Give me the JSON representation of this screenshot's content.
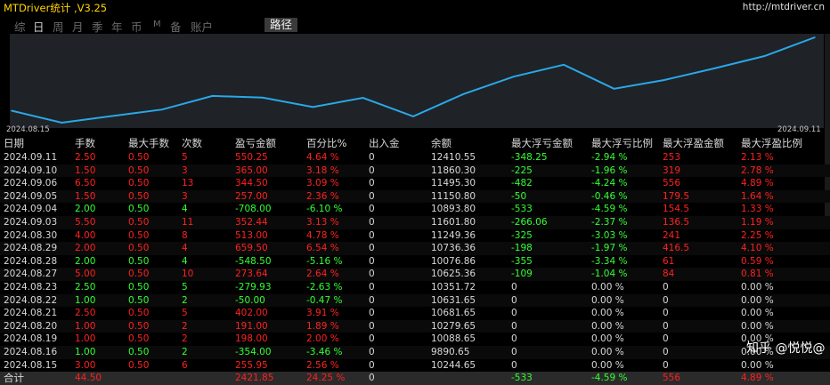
{
  "window": {
    "title": "MTDriver统计 ,V3.25",
    "url": "http://mtdriver.cn"
  },
  "tabs": [
    {
      "label": "综",
      "active": false
    },
    {
      "label": "日",
      "active": true
    },
    {
      "label": "周",
      "active": false
    },
    {
      "label": "月",
      "active": false
    },
    {
      "label": "季",
      "active": false
    },
    {
      "label": "年",
      "active": false
    },
    {
      "label": "币",
      "active": false
    },
    {
      "label": "M",
      "active": false
    },
    {
      "label": "备",
      "active": false
    },
    {
      "label": "账户",
      "active": false
    },
    {
      "label": "路径",
      "active": true
    }
  ],
  "chart_data": {
    "type": "line",
    "x_start_label": "2024.08.15",
    "x_end_label": "2024.09.11",
    "color": "#29a8e8",
    "x": [
      "2024.08.15",
      "2024.08.16",
      "2024.08.19",
      "2024.08.20",
      "2024.08.21",
      "2024.08.22",
      "2024.08.23",
      "2024.08.27",
      "2024.08.28",
      "2024.08.29",
      "2024.08.30",
      "2024.09.03",
      "2024.09.04",
      "2024.09.05",
      "2024.09.06",
      "2024.09.10",
      "2024.09.11"
    ],
    "values": [
      10244.65,
      9890.65,
      10088.65,
      10279.65,
      10681.65,
      10631.65,
      10351.72,
      10625.36,
      10076.86,
      10736.36,
      11249.36,
      11601.8,
      10893.8,
      11150.8,
      11495.3,
      11860.3,
      12410.55
    ]
  },
  "table": {
    "headers": [
      "日期",
      "手数",
      "最大手数",
      "次数",
      "盈亏金额",
      "百分比%",
      "出入金",
      "余额",
      "最大浮亏金额",
      "最大浮亏比例",
      "最大浮盈金额",
      "最大浮盈比例"
    ],
    "rows": [
      {
        "date": "2024.09.11",
        "lots": "2.50",
        "max_lots": "0.50",
        "count": "5",
        "pnl": "550.25",
        "pct": "4.64 %",
        "flow": "0",
        "balance": "12410.55",
        "max_loss": "-348.25",
        "max_loss_pct": "-2.94 %",
        "max_gain": "253",
        "max_gain_pct": "2.13 %",
        "tone": "r",
        "ltone": "g",
        "gtone": "r"
      },
      {
        "date": "2024.09.10",
        "lots": "1.50",
        "max_lots": "0.50",
        "count": "3",
        "pnl": "365.00",
        "pct": "3.18 %",
        "flow": "0",
        "balance": "11860.30",
        "max_loss": "-225",
        "max_loss_pct": "-1.96 %",
        "max_gain": "319",
        "max_gain_pct": "2.78 %",
        "tone": "r",
        "ltone": "g",
        "gtone": "r"
      },
      {
        "date": "2024.09.06",
        "lots": "6.50",
        "max_lots": "0.50",
        "count": "13",
        "pnl": "344.50",
        "pct": "3.09 %",
        "flow": "0",
        "balance": "11495.30",
        "max_loss": "-482",
        "max_loss_pct": "-4.24 %",
        "max_gain": "556",
        "max_gain_pct": "4.89 %",
        "tone": "r",
        "ltone": "g",
        "gtone": "r"
      },
      {
        "date": "2024.09.05",
        "lots": "1.50",
        "max_lots": "0.50",
        "count": "3",
        "pnl": "257.00",
        "pct": "2.36 %",
        "flow": "0",
        "balance": "11150.80",
        "max_loss": "-50",
        "max_loss_pct": "-0.46 %",
        "max_gain": "179.5",
        "max_gain_pct": "1.64 %",
        "tone": "r",
        "ltone": "g",
        "gtone": "r"
      },
      {
        "date": "2024.09.04",
        "lots": "2.00",
        "max_lots": "0.50",
        "count": "4",
        "pnl": "-708.00",
        "pct": "-6.10 %",
        "flow": "0",
        "balance": "10893.80",
        "max_loss": "-533",
        "max_loss_pct": "-4.59 %",
        "max_gain": "154.5",
        "max_gain_pct": "1.33 %",
        "tone": "g",
        "ltone": "g",
        "gtone": "r"
      },
      {
        "date": "2024.09.03",
        "lots": "5.50",
        "max_lots": "0.50",
        "count": "11",
        "pnl": "352.44",
        "pct": "3.13 %",
        "flow": "0",
        "balance": "11601.80",
        "max_loss": "-266.06",
        "max_loss_pct": "-2.37 %",
        "max_gain": "136.5",
        "max_gain_pct": "1.19 %",
        "tone": "r",
        "ltone": "g",
        "gtone": "r"
      },
      {
        "date": "2024.08.30",
        "lots": "4.00",
        "max_lots": "0.50",
        "count": "8",
        "pnl": "513.00",
        "pct": "4.78 %",
        "flow": "0",
        "balance": "11249.36",
        "max_loss": "-325",
        "max_loss_pct": "-3.03 %",
        "max_gain": "241",
        "max_gain_pct": "2.25 %",
        "tone": "r",
        "ltone": "g",
        "gtone": "r"
      },
      {
        "date": "2024.08.29",
        "lots": "2.00",
        "max_lots": "0.50",
        "count": "4",
        "pnl": "659.50",
        "pct": "6.54 %",
        "flow": "0",
        "balance": "10736.36",
        "max_loss": "-198",
        "max_loss_pct": "-1.97 %",
        "max_gain": "416.5",
        "max_gain_pct": "4.10 %",
        "tone": "r",
        "ltone": "g",
        "gtone": "r"
      },
      {
        "date": "2024.08.28",
        "lots": "2.00",
        "max_lots": "0.50",
        "count": "4",
        "pnl": "-548.50",
        "pct": "-5.16 %",
        "flow": "0",
        "balance": "10076.86",
        "max_loss": "-355",
        "max_loss_pct": "-3.34 %",
        "max_gain": "61",
        "max_gain_pct": "0.59 %",
        "tone": "g",
        "ltone": "g",
        "gtone": "r"
      },
      {
        "date": "2024.08.27",
        "lots": "5.00",
        "max_lots": "0.50",
        "count": "10",
        "pnl": "273.64",
        "pct": "2.64 %",
        "flow": "0",
        "balance": "10625.36",
        "max_loss": "-109",
        "max_loss_pct": "-1.04 %",
        "max_gain": "84",
        "max_gain_pct": "0.81 %",
        "tone": "r",
        "ltone": "g",
        "gtone": "r"
      },
      {
        "date": "2024.08.23",
        "lots": "2.50",
        "max_lots": "0.50",
        "count": "5",
        "pnl": "-279.93",
        "pct": "-2.63 %",
        "flow": "0",
        "balance": "10351.72",
        "max_loss": "0",
        "max_loss_pct": "0.00 %",
        "max_gain": "0",
        "max_gain_pct": "0.00 %",
        "tone": "g",
        "ltone": "w",
        "gtone": "w"
      },
      {
        "date": "2024.08.22",
        "lots": "1.00",
        "max_lots": "0.50",
        "count": "2",
        "pnl": "-50.00",
        "pct": "-0.47 %",
        "flow": "0",
        "balance": "10631.65",
        "max_loss": "0",
        "max_loss_pct": "0.00 %",
        "max_gain": "0",
        "max_gain_pct": "0.00 %",
        "tone": "g",
        "ltone": "w",
        "gtone": "w"
      },
      {
        "date": "2024.08.21",
        "lots": "2.50",
        "max_lots": "0.50",
        "count": "5",
        "pnl": "402.00",
        "pct": "3.91 %",
        "flow": "0",
        "balance": "10681.65",
        "max_loss": "0",
        "max_loss_pct": "0.00 %",
        "max_gain": "0",
        "max_gain_pct": "0.00 %",
        "tone": "r",
        "ltone": "w",
        "gtone": "w"
      },
      {
        "date": "2024.08.20",
        "lots": "1.00",
        "max_lots": "0.50",
        "count": "2",
        "pnl": "191.00",
        "pct": "1.89 %",
        "flow": "0",
        "balance": "10279.65",
        "max_loss": "0",
        "max_loss_pct": "0.00 %",
        "max_gain": "0",
        "max_gain_pct": "0.00 %",
        "tone": "r",
        "ltone": "w",
        "gtone": "w"
      },
      {
        "date": "2024.08.19",
        "lots": "1.00",
        "max_lots": "0.50",
        "count": "2",
        "pnl": "198.00",
        "pct": "2.00 %",
        "flow": "0",
        "balance": "10088.65",
        "max_loss": "0",
        "max_loss_pct": "0.00 %",
        "max_gain": "0",
        "max_gain_pct": "0.00 %",
        "tone": "r",
        "ltone": "w",
        "gtone": "w"
      },
      {
        "date": "2024.08.16",
        "lots": "1.00",
        "max_lots": "0.50",
        "count": "2",
        "pnl": "-354.00",
        "pct": "-3.46 %",
        "flow": "0",
        "balance": "9890.65",
        "max_loss": "0",
        "max_loss_pct": "0.00 %",
        "max_gain": "0",
        "max_gain_pct": "0.00 %",
        "tone": "g",
        "ltone": "w",
        "gtone": "w"
      },
      {
        "date": "2024.08.15",
        "lots": "3.00",
        "max_lots": "0.50",
        "count": "6",
        "pnl": "255.95",
        "pct": "2.56 %",
        "flow": "0",
        "balance": "10244.65",
        "max_loss": "0",
        "max_loss_pct": "0.00 %",
        "max_gain": "0",
        "max_gain_pct": "0.00 %",
        "tone": "r",
        "ltone": "w",
        "gtone": "w"
      }
    ],
    "footer": {
      "label": "合计",
      "lots": "44.50",
      "max_lots": "",
      "count": "",
      "pnl": "2421.85",
      "pct": "24.25 %",
      "flow": "0",
      "balance": "",
      "max_loss": "-533",
      "max_loss_pct": "-4.59 %",
      "max_gain": "556",
      "max_gain_pct": "4.89 %"
    }
  },
  "watermark": {
    "text": "知乎 @悦悦@"
  }
}
